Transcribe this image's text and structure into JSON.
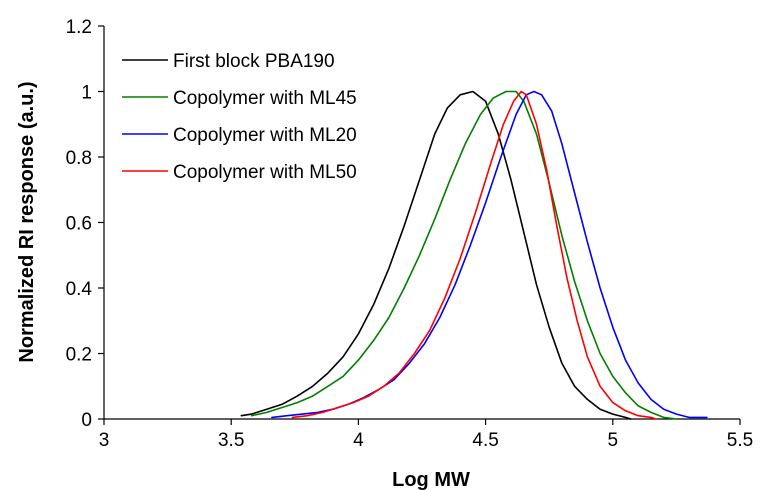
{
  "chart_data": {
    "type": "line",
    "title": "",
    "xlabel": "Log MW",
    "ylabel": "Normalized RI response (a.u.)",
    "xlim": [
      3,
      5.5
    ],
    "ylim": [
      0,
      1.2
    ],
    "xticks": [
      3,
      3.5,
      4,
      4.5,
      5,
      5.5
    ],
    "xtick_labels": [
      "3",
      "3.5",
      "4",
      "4.5",
      "5",
      "5.5"
    ],
    "yticks": [
      0,
      0.2,
      0.4,
      0.6,
      0.8,
      1,
      1.2
    ],
    "ytick_labels": [
      "0",
      "0.2",
      "0.4",
      "0.6",
      "0.8",
      "1",
      "1.2"
    ],
    "grid": false,
    "legend_position": "top-left",
    "series": [
      {
        "name": "First block PBA190",
        "color": "#000000",
        "x": [
          3.54,
          3.58,
          3.64,
          3.7,
          3.76,
          3.82,
          3.88,
          3.94,
          4.0,
          4.06,
          4.12,
          4.18,
          4.24,
          4.3,
          4.35,
          4.4,
          4.45,
          4.5,
          4.55,
          4.6,
          4.65,
          4.7,
          4.75,
          4.8,
          4.85,
          4.9,
          4.95,
          5.0,
          5.05,
          5.07
        ],
        "y": [
          0.01,
          0.015,
          0.03,
          0.045,
          0.07,
          0.1,
          0.14,
          0.19,
          0.26,
          0.35,
          0.46,
          0.59,
          0.73,
          0.87,
          0.95,
          0.99,
          1.0,
          0.97,
          0.87,
          0.73,
          0.57,
          0.41,
          0.28,
          0.17,
          0.1,
          0.06,
          0.03,
          0.015,
          0.005,
          0.0
        ]
      },
      {
        "name": "Copolymer with ML45",
        "color": "#008000",
        "x": [
          3.58,
          3.64,
          3.7,
          3.76,
          3.82,
          3.88,
          3.94,
          4.0,
          4.06,
          4.12,
          4.18,
          4.24,
          4.3,
          4.36,
          4.42,
          4.48,
          4.53,
          4.58,
          4.62,
          4.65,
          4.7,
          4.75,
          4.8,
          4.85,
          4.9,
          4.95,
          5.0,
          5.05,
          5.1,
          5.15,
          5.2,
          5.25
        ],
        "y": [
          0.01,
          0.02,
          0.035,
          0.05,
          0.07,
          0.1,
          0.13,
          0.18,
          0.24,
          0.31,
          0.4,
          0.5,
          0.61,
          0.73,
          0.84,
          0.93,
          0.98,
          1.0,
          1.0,
          0.97,
          0.87,
          0.72,
          0.56,
          0.42,
          0.3,
          0.2,
          0.13,
          0.08,
          0.04,
          0.02,
          0.005,
          0.0
        ]
      },
      {
        "name": "Copolymer with ML20",
        "color": "#0000FF",
        "x": [
          3.66,
          3.72,
          3.78,
          3.84,
          3.9,
          3.96,
          4.02,
          4.08,
          4.14,
          4.2,
          4.26,
          4.32,
          4.38,
          4.44,
          4.5,
          4.56,
          4.62,
          4.66,
          4.69,
          4.72,
          4.76,
          4.8,
          4.85,
          4.9,
          4.95,
          5.0,
          5.05,
          5.1,
          5.15,
          5.2,
          5.25,
          5.3,
          5.37
        ],
        "y": [
          0.005,
          0.01,
          0.015,
          0.02,
          0.03,
          0.045,
          0.065,
          0.09,
          0.12,
          0.17,
          0.23,
          0.31,
          0.41,
          0.53,
          0.66,
          0.8,
          0.93,
          0.99,
          1.0,
          0.99,
          0.94,
          0.84,
          0.69,
          0.54,
          0.4,
          0.28,
          0.18,
          0.11,
          0.06,
          0.03,
          0.015,
          0.005,
          0.005
        ]
      },
      {
        "name": "Copolymer with ML50",
        "color": "#FF0000",
        "x": [
          3.74,
          3.8,
          3.86,
          3.92,
          3.98,
          4.04,
          4.1,
          4.16,
          4.22,
          4.28,
          4.34,
          4.4,
          4.46,
          4.52,
          4.57,
          4.61,
          4.64,
          4.66,
          4.7,
          4.74,
          4.78,
          4.82,
          4.86,
          4.9,
          4.95,
          5.0,
          5.05,
          5.1,
          5.15,
          5.17
        ],
        "y": [
          0.005,
          0.01,
          0.02,
          0.035,
          0.05,
          0.07,
          0.1,
          0.14,
          0.2,
          0.27,
          0.37,
          0.49,
          0.63,
          0.78,
          0.9,
          0.97,
          1.0,
          0.99,
          0.9,
          0.76,
          0.59,
          0.43,
          0.3,
          0.19,
          0.1,
          0.05,
          0.025,
          0.01,
          0.005,
          0.0
        ]
      }
    ]
  }
}
